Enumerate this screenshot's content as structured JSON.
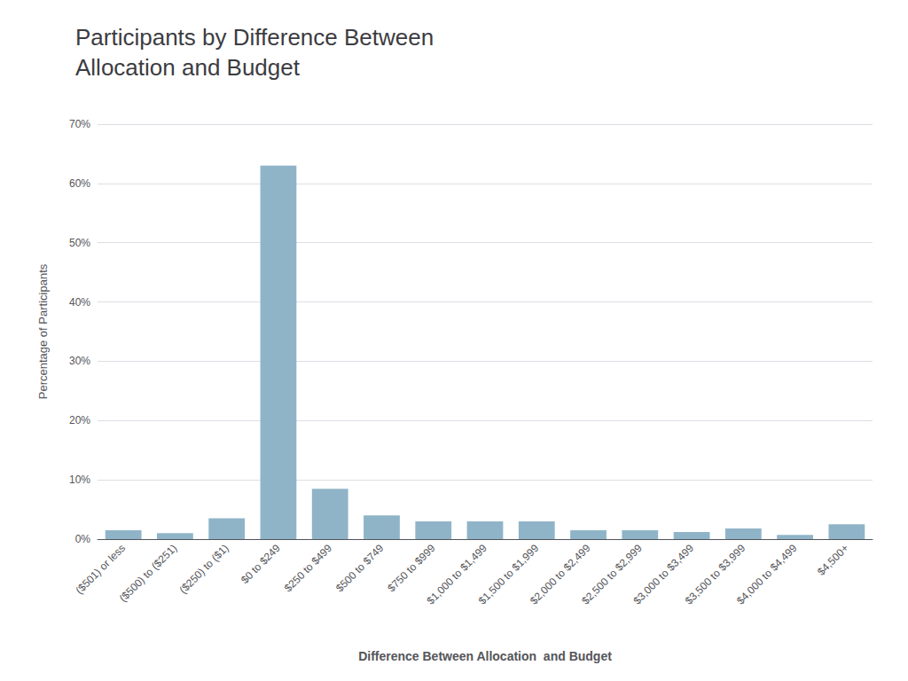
{
  "chart_data": {
    "type": "bar",
    "title": "Participants by Difference Between\nAllocation and Budget",
    "xlabel": "Difference Between Allocation  and Budget",
    "ylabel": "Percentage of Participants",
    "categories": [
      "($501) or less",
      "($500) to ($251)",
      "($250) to ($1)",
      "$0 to $249",
      "$250 to $499",
      "$500 to $749",
      "$750 to $999",
      "$1,000 to $1,499",
      "$1,500 to $1,999",
      "$2,000 to $2,499",
      "$2,500 to $2,999",
      "$3,000 to $3,499",
      "$3,500 to $3,999",
      "$4,000 to $4,499",
      "$4,500+"
    ],
    "values": [
      1.5,
      1.0,
      3.5,
      63.0,
      8.5,
      4.0,
      3.0,
      3.0,
      3.0,
      1.5,
      1.5,
      1.2,
      1.8,
      0.7,
      2.5
    ],
    "color": "#8fb4c8",
    "ylim": [
      0,
      70
    ],
    "yticks": [
      {
        "value": 0,
        "label": "0%"
      },
      {
        "value": 10,
        "label": "10%"
      },
      {
        "value": 20,
        "label": "20%"
      },
      {
        "value": 30,
        "label": "30%"
      },
      {
        "value": 40,
        "label": "40%"
      },
      {
        "value": 50,
        "label": "50%"
      },
      {
        "value": 60,
        "label": "60%"
      },
      {
        "value": 70,
        "label": "70%"
      }
    ],
    "grid": true
  }
}
